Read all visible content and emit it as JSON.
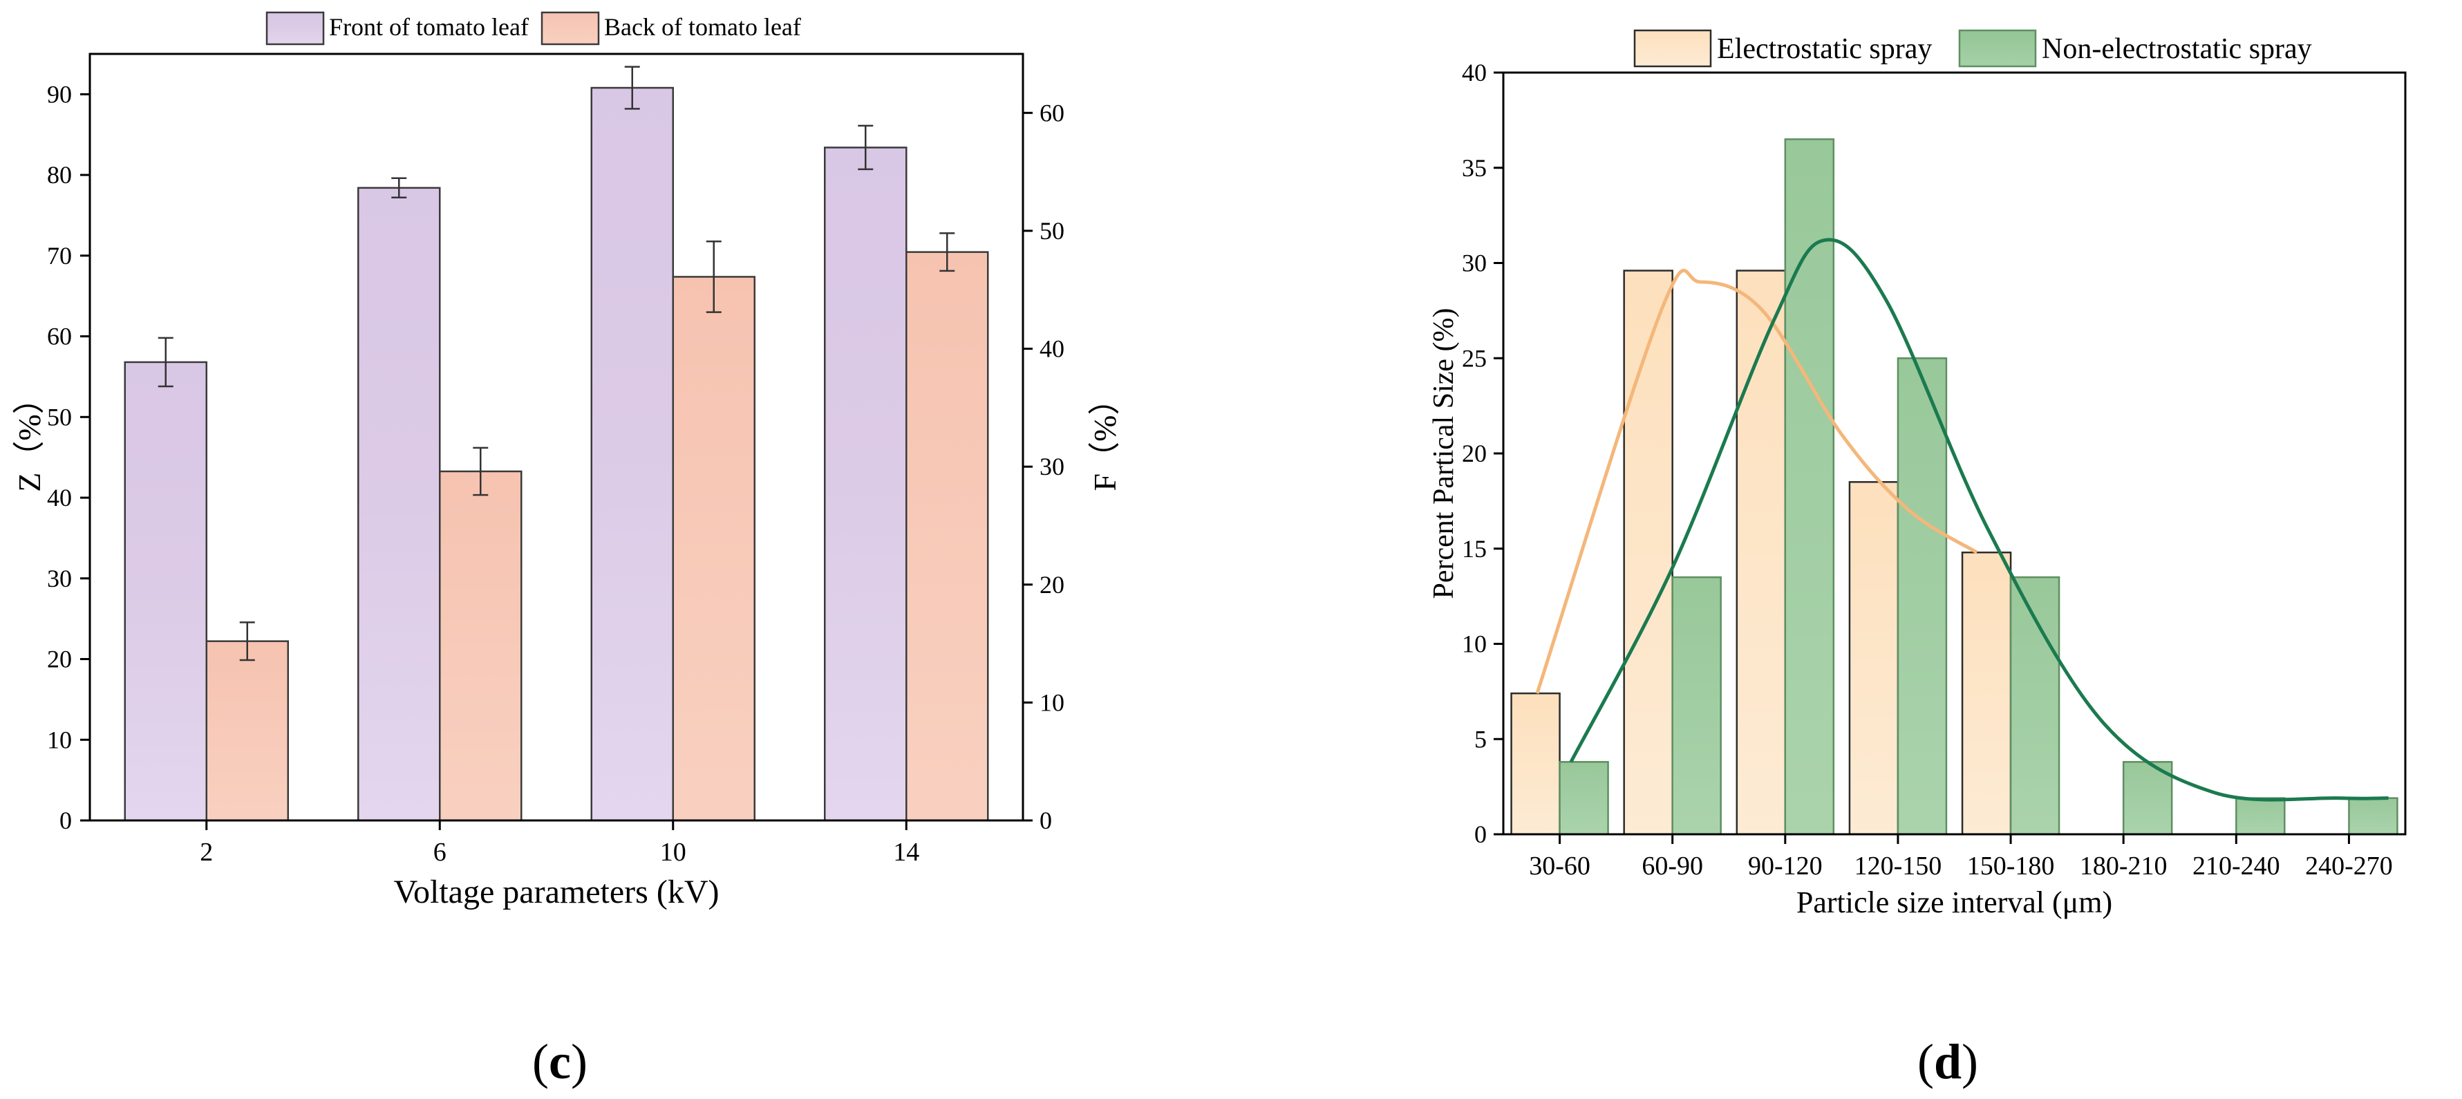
{
  "chart_data": [
    {
      "type": "bar",
      "panel": "(c)",
      "panel_letter": "c",
      "categories": [
        "2",
        "6",
        "10",
        "14"
      ],
      "xlabel": "Voltage parameters (kV)",
      "ylabel": "Z（%）",
      "ylabel_right": "F（%）",
      "ylim": [
        0,
        95
      ],
      "ylim_right": [
        0,
        65
      ],
      "yticks": [
        0,
        10,
        20,
        30,
        40,
        50,
        60,
        70,
        80,
        90
      ],
      "yticks_right": [
        0,
        10,
        20,
        30,
        40,
        50,
        60
      ],
      "legend_position": "top-center",
      "series": [
        {
          "name": "Front of tomato leaf",
          "axis": "left",
          "values": [
            56.8,
            78.4,
            90.8,
            83.4
          ],
          "errors": [
            3.0,
            1.2,
            2.6,
            2.7
          ],
          "color": "#dccbe6"
        },
        {
          "name": "Back of tomato leaf",
          "axis": "right",
          "values": [
            15.2,
            29.6,
            46.1,
            48.2
          ],
          "errors": [
            1.6,
            2.0,
            3.0,
            1.6
          ],
          "color": "#f7c8b6"
        }
      ]
    },
    {
      "type": "bar",
      "panel": "(d)",
      "panel_letter": "d",
      "categories": [
        "30-60",
        "60-90",
        "90-120",
        "120-150",
        "150-180",
        "180-210",
        "210-240",
        "240-270"
      ],
      "xlabel": "Particle size interval (μm)",
      "ylabel": "Percent Partical Size (%)",
      "ylim": [
        0,
        40
      ],
      "yticks": [
        0,
        5,
        10,
        15,
        20,
        25,
        30,
        35,
        40
      ],
      "legend_position": "top-center",
      "series": [
        {
          "name": "Electrostatic spray",
          "values": [
            7.4,
            29.6,
            29.6,
            18.5,
            14.8,
            0,
            0,
            0
          ],
          "color": "#fde3c4",
          "curve_color": "#f4b77a"
        },
        {
          "name": "Non-electrostatic spray",
          "values": [
            3.8,
            13.5,
            36.5,
            25.0,
            13.5,
            3.8,
            1.9,
            1.9
          ],
          "color": "#98c89a",
          "curve_color": "#1b7a4f"
        }
      ]
    }
  ]
}
